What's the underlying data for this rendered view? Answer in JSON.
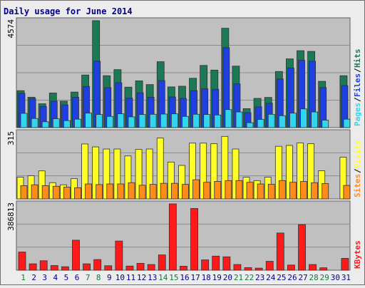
{
  "title": "Daily usage for June 2014",
  "colors": {
    "hits": "#1b7a55",
    "files": "#1f3fe0",
    "pages": "#2fd6ee",
    "visits": "#ffff26",
    "sites": "#ff8c1a",
    "kbytes": "#ff1a1a",
    "weekend_label": "#0b7d3a",
    "weekday_label": "#00008b",
    "panel": "#c0c0c0",
    "grid": "#8c8c8c"
  },
  "chart_data": [
    {
      "type": "bar",
      "ylabel_max": "4574",
      "ylim": [
        0,
        4574
      ],
      "side_labels": [
        "Pages",
        "Files",
        "Hits"
      ],
      "categories": [
        "1",
        "2",
        "3",
        "4",
        "5",
        "6",
        "7",
        "8",
        "9",
        "10",
        "11",
        "12",
        "13",
        "14",
        "15",
        "16",
        "17",
        "18",
        "19",
        "20",
        "21",
        "22",
        "23",
        "24",
        "25",
        "26",
        "27",
        "28",
        "29",
        "30",
        "31"
      ],
      "weekend_days": [
        1,
        7,
        8,
        14,
        15,
        21,
        22,
        28,
        29
      ],
      "series": [
        {
          "name": "Hits",
          "values": [
            1580,
            1300,
            1020,
            1480,
            1130,
            1520,
            2250,
            4574,
            2220,
            2480,
            1730,
            2000,
            1840,
            2820,
            1740,
            1770,
            2110,
            2660,
            2460,
            4250,
            2630,
            810,
            1250,
            1290,
            2400,
            2940,
            3290,
            3260,
            1980,
            null,
            2220
          ]
        },
        {
          "name": "Files",
          "values": [
            1470,
            1240,
            910,
            1130,
            970,
            1300,
            1760,
            2840,
            1710,
            1920,
            1260,
            1490,
            1300,
            2010,
            1310,
            1250,
            1580,
            1660,
            1640,
            3420,
            1870,
            640,
            890,
            1040,
            2080,
            2550,
            2880,
            2840,
            1710,
            null,
            1800
          ]
        },
        {
          "name": "Pages",
          "values": [
            610,
            390,
            250,
            380,
            300,
            360,
            620,
            560,
            480,
            590,
            460,
            560,
            570,
            580,
            590,
            480,
            570,
            560,
            540,
            770,
            670,
            210,
            350,
            570,
            510,
            620,
            800,
            670,
            320,
            null,
            360
          ]
        }
      ]
    },
    {
      "type": "bar",
      "ylabel_max": "315",
      "ylim": [
        0,
        315
      ],
      "side_labels": [
        "Sites",
        "Visits"
      ],
      "categories": [
        "1",
        "2",
        "3",
        "4",
        "5",
        "6",
        "7",
        "8",
        "9",
        "10",
        "11",
        "12",
        "13",
        "14",
        "15",
        "16",
        "17",
        "18",
        "19",
        "20",
        "21",
        "22",
        "23",
        "24",
        "25",
        "26",
        "27",
        "28",
        "29",
        "30",
        "31"
      ],
      "series": [
        {
          "name": "Visits",
          "values": [
            103,
            110,
            133,
            77,
            67,
            96,
            261,
            247,
            237,
            237,
            204,
            235,
            237,
            289,
            175,
            159,
            265,
            265,
            262,
            297,
            237,
            103,
            87,
            103,
            250,
            254,
            266,
            262,
            134,
            null,
            198
          ]
        },
        {
          "name": "Sites",
          "values": [
            63,
            67,
            63,
            60,
            56,
            53,
            71,
            68,
            71,
            71,
            77,
            65,
            69,
            74,
            74,
            69,
            91,
            79,
            83,
            87,
            87,
            79,
            71,
            70,
            87,
            79,
            83,
            77,
            73,
            null,
            64
          ]
        }
      ]
    },
    {
      "type": "bar",
      "ylabel_max": "386813",
      "ylim": [
        0,
        386813
      ],
      "side_labels": [
        "KBytes"
      ],
      "categories": [
        "1",
        "2",
        "3",
        "4",
        "5",
        "6",
        "7",
        "8",
        "9",
        "10",
        "11",
        "12",
        "13",
        "14",
        "15",
        "16",
        "17",
        "18",
        "19",
        "20",
        "21",
        "22",
        "23",
        "24",
        "25",
        "26",
        "27",
        "28",
        "29",
        "30",
        "31"
      ],
      "series": [
        {
          "name": "KBytes",
          "values": [
            106000,
            37000,
            55000,
            27000,
            20000,
            175000,
            37000,
            62000,
            26000,
            170000,
            24000,
            40000,
            33000,
            89000,
            386813,
            23000,
            360000,
            60000,
            82000,
            78000,
            33000,
            15000,
            12000,
            52000,
            217000,
            30000,
            266000,
            33000,
            14000,
            null,
            69000
          ]
        }
      ]
    }
  ]
}
